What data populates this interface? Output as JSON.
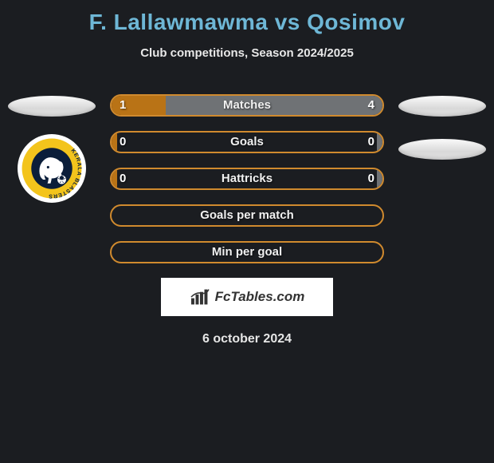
{
  "title": "F. Lallawmawma vs Qosimov",
  "subtitle": "Club competitions, Season 2024/2025",
  "date": "6 october 2024",
  "watermark_text": "FcTables.com",
  "colors": {
    "border_orange": "#d08a2e",
    "fill_orange": "#b97316",
    "fill_gray": "#6f7275",
    "border_gray": "#8b8e91",
    "title_blue": "#6eb7d6",
    "badge_yellow": "#f3c41c",
    "badge_navy": "#0b1e3a"
  },
  "stats": [
    {
      "label": "Matches",
      "left_value": "1",
      "right_value": "4",
      "left_fill_pct": 20,
      "right_fill_pct": 80,
      "left_fill_color": "#b97316",
      "right_fill_color": "#6f7275",
      "border_color": "#d08a2e"
    },
    {
      "label": "Goals",
      "left_value": "0",
      "right_value": "0",
      "left_fill_pct": 2,
      "right_fill_pct": 2,
      "left_fill_color": "#b97316",
      "right_fill_color": "#6f7275",
      "border_color": "#d08a2e"
    },
    {
      "label": "Hattricks",
      "left_value": "0",
      "right_value": "0",
      "left_fill_pct": 2,
      "right_fill_pct": 2,
      "left_fill_color": "#b97316",
      "right_fill_color": "#6f7275",
      "border_color": "#d08a2e"
    },
    {
      "label": "Goals per match",
      "left_value": "",
      "right_value": "",
      "left_fill_pct": 0,
      "right_fill_pct": 0,
      "left_fill_color": "#b97316",
      "right_fill_color": "#6f7275",
      "border_color": "#d08a2e"
    },
    {
      "label": "Min per goal",
      "left_value": "",
      "right_value": "",
      "left_fill_pct": 0,
      "right_fill_pct": 0,
      "left_fill_color": "#b97316",
      "right_fill_color": "#6f7275",
      "border_color": "#d08a2e"
    }
  ],
  "left_player": {
    "top_badge": "ellipse",
    "club_badge": true,
    "club_name_ring": "KERALA BLASTERS"
  },
  "right_player": {
    "ellipses": 2
  }
}
